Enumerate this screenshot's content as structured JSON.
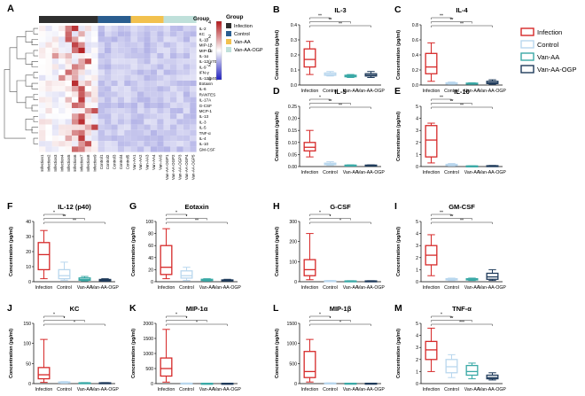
{
  "colors": {
    "infection": "#d62828",
    "control": "#b9d7ee",
    "van_aa": "#3aa9a6",
    "van_aa_ogp": "#1f3b5b",
    "group_infection": "#2f2f2f",
    "group_control": "#2a5d8f",
    "group_van_aa": "#f2c14e",
    "group_van_aa_ogp": "#bfe0da",
    "sig": "#333333"
  },
  "groups": [
    "Infection",
    "Control",
    "Van-AA",
    "Van-AA-OGP"
  ],
  "legend": {
    "labels": [
      "Infection",
      "Control",
      "Van-AA",
      "Van-AA-OGP"
    ]
  },
  "heatmap": {
    "panel_label": "A",
    "group_title": "Group",
    "group_legend": [
      "Infection",
      "Control",
      "Van-AA",
      "Van-AA-OGP"
    ],
    "scale_ticks": [
      "4",
      "2",
      "0",
      "-2",
      "-4"
    ],
    "rows": [
      "IL-2",
      "KC",
      "IL-1β",
      "MIP-1β",
      "MIP-1α",
      "IL-1α",
      "IL-12(p70)",
      "IL-9",
      "IFN-γ",
      "IL-12(p40)",
      "Eotaxin",
      "IL-6",
      "RANTES",
      "IL-17A",
      "G-CSF",
      "MCP-1",
      "IL-13",
      "IL-3",
      "IL-5",
      "TNF-α",
      "IL-4",
      "IL-10",
      "GM-CSF"
    ],
    "columns": [
      "Infection1",
      "Infection2",
      "Infection3",
      "Infection4",
      "Infection5",
      "Infection6",
      "Infection7",
      "Infection8",
      "Infection9",
      "Control1",
      "Control2",
      "Control3",
      "Control4",
      "Control5",
      "Van-AA1",
      "Van-AA2",
      "Van-AA3",
      "Van-AA4",
      "Van-AA5",
      "Van-AA-OGP1",
      "Van-AA-OGP2",
      "Van-AA-OGP3",
      "Van-AA-OGP4",
      "Van-AA-OGP5"
    ],
    "hot_cells": [
      [
        0,
        5,
        3.5
      ],
      [
        0,
        4,
        2.2
      ],
      [
        1,
        4,
        2.6
      ],
      [
        1,
        6,
        1.4
      ],
      [
        2,
        4,
        2.8
      ],
      [
        2,
        5,
        1.6
      ],
      [
        3,
        5,
        3.2
      ],
      [
        3,
        6,
        2.0
      ],
      [
        4,
        6,
        3.8
      ],
      [
        4,
        5,
        2.4
      ],
      [
        5,
        2,
        1.8
      ],
      [
        5,
        4,
        1.2
      ],
      [
        6,
        7,
        3.0
      ],
      [
        6,
        6,
        1.5
      ],
      [
        7,
        5,
        2.2
      ],
      [
        7,
        6,
        1.6
      ],
      [
        8,
        4,
        2.5
      ],
      [
        8,
        5,
        1.4
      ],
      [
        9,
        3,
        2.0
      ],
      [
        9,
        5,
        1.5
      ],
      [
        10,
        5,
        3.6
      ],
      [
        10,
        7,
        1.2
      ],
      [
        11,
        6,
        3.0
      ],
      [
        11,
        5,
        1.6
      ],
      [
        12,
        6,
        2.8
      ],
      [
        12,
        7,
        1.4
      ],
      [
        13,
        6,
        3.4
      ],
      [
        13,
        4,
        1.2
      ],
      [
        14,
        5,
        2.6
      ],
      [
        14,
        6,
        2.2
      ],
      [
        15,
        8,
        3.0
      ],
      [
        15,
        7,
        1.8
      ],
      [
        16,
        6,
        2.8
      ],
      [
        16,
        5,
        1.6
      ],
      [
        17,
        6,
        3.6
      ],
      [
        17,
        5,
        2.0
      ],
      [
        18,
        8,
        3.2
      ],
      [
        18,
        7,
        1.4
      ],
      [
        19,
        6,
        2.4
      ],
      [
        19,
        5,
        2.0
      ],
      [
        20,
        6,
        3.4
      ],
      [
        20,
        4,
        1.5
      ],
      [
        21,
        7,
        3.0
      ],
      [
        21,
        6,
        1.8
      ],
      [
        22,
        5,
        2.6
      ],
      [
        22,
        6,
        2.2
      ]
    ]
  },
  "y_label": "Concentration (pg/ml)",
  "chart_data": [
    {
      "type": "box",
      "panel": "B",
      "title": "IL-3",
      "categories": [
        "Infection",
        "Control",
        "Van-AA",
        "Van-AA-OGP"
      ],
      "yticks": [
        0.0,
        0.1,
        0.2,
        0.3,
        0.4
      ],
      "ylim": [
        0,
        0.4
      ],
      "sig": [
        "**",
        "**",
        "**"
      ],
      "boxes": [
        {
          "min": 0.07,
          "q1": 0.12,
          "med": 0.17,
          "q3": 0.24,
          "max": 0.29
        },
        {
          "min": 0.06,
          "q1": 0.065,
          "med": 0.07,
          "q3": 0.08,
          "max": 0.09
        },
        {
          "min": 0.05,
          "q1": 0.055,
          "med": 0.06,
          "q3": 0.065,
          "max": 0.07
        },
        {
          "min": 0.05,
          "q1": 0.06,
          "med": 0.065,
          "q3": 0.075,
          "max": 0.09
        }
      ]
    },
    {
      "type": "box",
      "panel": "C",
      "title": "IL-4",
      "categories": [
        "Infection",
        "Control",
        "Van-AA",
        "Van-AA-OGP"
      ],
      "yticks": [
        0.0,
        0.2,
        0.4,
        0.6,
        0.8
      ],
      "ylim": [
        0,
        0.8
      ],
      "sig": [
        "**",
        "**",
        "**"
      ],
      "boxes": [
        {
          "min": 0.05,
          "q1": 0.15,
          "med": 0.24,
          "q3": 0.42,
          "max": 0.56
        },
        {
          "min": 0.01,
          "q1": 0.015,
          "med": 0.02,
          "q3": 0.03,
          "max": 0.04
        },
        {
          "min": 0.01,
          "q1": 0.015,
          "med": 0.02,
          "q3": 0.025,
          "max": 0.03
        },
        {
          "min": 0.01,
          "q1": 0.02,
          "med": 0.03,
          "q3": 0.05,
          "max": 0.07
        }
      ]
    },
    {
      "type": "box",
      "panel": "D",
      "title": "IL-5",
      "categories": [
        "Infection",
        "Control",
        "Van-AA",
        "Van-AA-OGP"
      ],
      "yticks": [
        0.0,
        0.05,
        0.1,
        0.15,
        0.2,
        0.25
      ],
      "ylim": [
        0,
        0.25
      ],
      "sig": [
        "*",
        "**",
        "**"
      ],
      "boxes": [
        {
          "min": 0.04,
          "q1": 0.065,
          "med": 0.08,
          "q3": 0.1,
          "max": 0.15
        },
        {
          "min": 0.005,
          "q1": 0.008,
          "med": 0.01,
          "q3": 0.014,
          "max": 0.02
        },
        {
          "min": 0.003,
          "q1": 0.004,
          "med": 0.005,
          "q3": 0.006,
          "max": 0.007
        },
        {
          "min": 0.003,
          "q1": 0.004,
          "med": 0.005,
          "q3": 0.006,
          "max": 0.007
        }
      ]
    },
    {
      "type": "box",
      "panel": "E",
      "title": "IL-10",
      "categories": [
        "Infection",
        "Control",
        "Van-AA",
        "Van-AA-OGP"
      ],
      "yticks": [
        0,
        1,
        2,
        3,
        4,
        5
      ],
      "ylim": [
        0,
        5
      ],
      "sig": [
        "**",
        "**",
        "**"
      ],
      "boxes": [
        {
          "min": 0.3,
          "q1": 0.8,
          "med": 2.2,
          "q3": 3.4,
          "max": 3.6
        },
        {
          "min": 0.05,
          "q1": 0.08,
          "med": 0.12,
          "q3": 0.18,
          "max": 0.25
        },
        {
          "min": 0.02,
          "q1": 0.03,
          "med": 0.04,
          "q3": 0.05,
          "max": 0.06
        },
        {
          "min": 0.02,
          "q1": 0.03,
          "med": 0.05,
          "q3": 0.07,
          "max": 0.09
        }
      ]
    },
    {
      "type": "box",
      "panel": "F",
      "title": "IL-12 (p40)",
      "categories": [
        "Infection",
        "Control",
        "Van-AA",
        "Van-AA-OGP"
      ],
      "yticks": [
        0,
        10,
        20,
        30,
        40
      ],
      "ylim": [
        0,
        40
      ],
      "sig": [
        "*",
        "**",
        "**"
      ],
      "boxes": [
        {
          "min": 2,
          "q1": 8,
          "med": 18,
          "q3": 26,
          "max": 34
        },
        {
          "min": 1,
          "q1": 2,
          "med": 4,
          "q3": 8,
          "max": 13
        },
        {
          "min": 0.5,
          "q1": 1,
          "med": 1.5,
          "q3": 2.5,
          "max": 3.5
        },
        {
          "min": 0.3,
          "q1": 0.6,
          "med": 1,
          "q3": 1.5,
          "max": 2
        }
      ]
    },
    {
      "type": "box",
      "panel": "G",
      "title": "Eotaxin",
      "categories": [
        "Infection",
        "Control",
        "Van-AA",
        "Van-AA-OGP"
      ],
      "yticks": [
        0,
        20,
        40,
        60,
        80,
        100
      ],
      "ylim": [
        0,
        100
      ],
      "sig": [
        "*",
        "*",
        "**"
      ],
      "boxes": [
        {
          "min": 5,
          "q1": 12,
          "med": 24,
          "q3": 60,
          "max": 88
        },
        {
          "min": 2,
          "q1": 6,
          "med": 10,
          "q3": 18,
          "max": 24
        },
        {
          "min": 1,
          "q1": 2,
          "med": 3,
          "q3": 4,
          "max": 5
        },
        {
          "min": 1,
          "q1": 1.5,
          "med": 2,
          "q3": 3,
          "max": 4
        }
      ]
    },
    {
      "type": "box",
      "panel": "H",
      "title": "G-CSF",
      "categories": [
        "Infection",
        "Control",
        "Van-AA",
        "Van-AA-OGP"
      ],
      "yticks": [
        0,
        100,
        200,
        300
      ],
      "ylim": [
        0,
        300
      ],
      "sig": [
        "*",
        "*",
        "*"
      ],
      "boxes": [
        {
          "min": 10,
          "q1": 30,
          "med": 60,
          "q3": 110,
          "max": 240
        },
        {
          "min": 2,
          "q1": 3,
          "med": 4,
          "q3": 5,
          "max": 6
        },
        {
          "min": 1,
          "q1": 2,
          "med": 3,
          "q3": 4,
          "max": 5
        },
        {
          "min": 1,
          "q1": 2,
          "med": 3,
          "q3": 4,
          "max": 5
        }
      ]
    },
    {
      "type": "box",
      "panel": "I",
      "title": "GM-CSF",
      "categories": [
        "Infection",
        "Control",
        "Van-AA",
        "Van-AA-OGP"
      ],
      "yticks": [
        0,
        1,
        2,
        3,
        4,
        5
      ],
      "ylim": [
        0,
        5
      ],
      "sig": [
        "**",
        "**",
        "**"
      ],
      "boxes": [
        {
          "min": 0.5,
          "q1": 1.4,
          "med": 2.2,
          "q3": 3.0,
          "max": 3.9
        },
        {
          "min": 0.1,
          "q1": 0.15,
          "med": 0.2,
          "q3": 0.25,
          "max": 0.3
        },
        {
          "min": 0.1,
          "q1": 0.15,
          "med": 0.2,
          "q3": 0.25,
          "max": 0.3
        },
        {
          "min": 0.1,
          "q1": 0.2,
          "med": 0.4,
          "q3": 0.7,
          "max": 1.0
        }
      ]
    },
    {
      "type": "box",
      "panel": "J",
      "title": "KC",
      "categories": [
        "Infection",
        "Control",
        "Van-AA",
        "Van-AA-OGP"
      ],
      "yticks": [
        0,
        50,
        100,
        150
      ],
      "ylim": [
        0,
        150
      ],
      "sig": [
        "*",
        "*",
        "*"
      ],
      "boxes": [
        {
          "min": 3,
          "q1": 12,
          "med": 22,
          "q3": 40,
          "max": 110
        },
        {
          "min": 1,
          "q1": 2,
          "med": 3,
          "q3": 4,
          "max": 5
        },
        {
          "min": 0.5,
          "q1": 1,
          "med": 1.5,
          "q3": 2,
          "max": 2.5
        },
        {
          "min": 0.5,
          "q1": 1,
          "med": 1.5,
          "q3": 2,
          "max": 2.5
        }
      ]
    },
    {
      "type": "box",
      "panel": "K",
      "title": "MIP-1α",
      "categories": [
        "Infection",
        "Control",
        "Van-AA",
        "Van-AA-OGP"
      ],
      "yticks": [
        0,
        500,
        1000,
        1500,
        2000
      ],
      "ylim": [
        0,
        2000
      ],
      "sig": [
        "*",
        "*",
        "*"
      ],
      "boxes": [
        {
          "min": 50,
          "q1": 250,
          "med": 500,
          "q3": 850,
          "max": 1800
        },
        {
          "min": 5,
          "q1": 8,
          "med": 10,
          "q3": 14,
          "max": 18
        },
        {
          "min": 3,
          "q1": 5,
          "med": 6,
          "q3": 8,
          "max": 10
        },
        {
          "min": 3,
          "q1": 5,
          "med": 6,
          "q3": 8,
          "max": 10
        }
      ]
    },
    {
      "type": "box",
      "panel": "L",
      "title": "MIP-1β",
      "categories": [
        "Infection",
        "Control",
        "Van-AA",
        "Van-AA-OGP"
      ],
      "yticks": [
        0,
        500,
        1000,
        1500
      ],
      "ylim": [
        0,
        1500
      ],
      "sig": [
        "*",
        "*",
        "*"
      ],
      "boxes": [
        {
          "min": 40,
          "q1": 150,
          "med": 300,
          "q3": 800,
          "max": 1100
        },
        {
          "min": 5,
          "q1": 8,
          "med": 10,
          "q3": 14,
          "max": 18
        },
        {
          "min": 3,
          "q1": 5,
          "med": 6,
          "q3": 8,
          "max": 10
        },
        {
          "min": 3,
          "q1": 5,
          "med": 6,
          "q3": 8,
          "max": 10
        }
      ]
    },
    {
      "type": "box",
      "panel": "M",
      "title": "TNF-α",
      "categories": [
        "Infection",
        "Control",
        "Van-AA",
        "Van-AA-OGP"
      ],
      "yticks": [
        0,
        1,
        2,
        3,
        4,
        5
      ],
      "ylim": [
        0,
        5
      ],
      "sig": [
        "*",
        "**",
        "***"
      ],
      "boxes": [
        {
          "min": 1.0,
          "q1": 2.0,
          "med": 2.8,
          "q3": 3.5,
          "max": 4.6
        },
        {
          "min": 0.5,
          "q1": 0.9,
          "med": 1.4,
          "q3": 2.0,
          "max": 2.4
        },
        {
          "min": 0.4,
          "q1": 0.7,
          "med": 1.0,
          "q3": 1.5,
          "max": 1.7
        },
        {
          "min": 0.3,
          "q1": 0.4,
          "med": 0.5,
          "q3": 0.7,
          "max": 0.9
        }
      ]
    }
  ]
}
